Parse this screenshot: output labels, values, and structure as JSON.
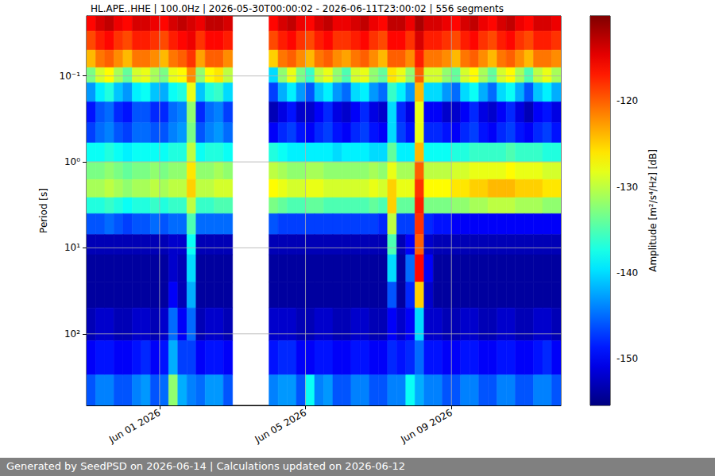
{
  "chart_data": {
    "type": "heatmap",
    "title": "HL.APE..HHE | 100.0Hz | 2026-05-30T00:00:02 - 2026-06-11T23:00:02 | 556 segments",
    "footer": "Generated by SeedPSD on 2026-06-14 | Calculations updated on 2026-06-12",
    "y_label": "Period [s]",
    "log": "y",
    "grid": true,
    "xlim": [
      "2026-05-30T00:00",
      "2026-06-12T00:00"
    ],
    "xticks": [
      {
        "value": "2026-06-01T00:00",
        "label": "Jun 01 2026"
      },
      {
        "value": "2026-06-05T00:00",
        "label": "Jun 05 2026"
      },
      {
        "value": "2026-06-09T00:00",
        "label": "Jun 09 2026"
      }
    ],
    "ylim": [
      0.02,
      680
    ],
    "yticks": [
      {
        "value": 0.1,
        "label": "10⁻¹"
      },
      {
        "value": 1,
        "label": "10⁰"
      },
      {
        "value": 10,
        "label": "10¹"
      },
      {
        "value": 100,
        "label": "10²"
      }
    ],
    "colorbar": {
      "label": "Amplitude [m²/s⁴/Hz] [dB]",
      "range": [
        -155.4,
        -110.1
      ],
      "ticks": [
        -150,
        -140,
        -130,
        -120
      ]
    },
    "time_edges": [
      "2026-05-30T00:00",
      "2026-05-30T06:00",
      "2026-05-30T12:00",
      "2026-05-30T18:00",
      "2026-05-31T00:00",
      "2026-05-31T06:00",
      "2026-05-31T12:00",
      "2026-05-31T18:00",
      "2026-06-01T00:00",
      "2026-06-01T06:00",
      "2026-06-01T12:00",
      "2026-06-01T18:00",
      "2026-06-02T00:00",
      "2026-06-02T06:00",
      "2026-06-02T12:00",
      "2026-06-02T18:00",
      "2026-06-03T00:00",
      "2026-06-03T06:00",
      "2026-06-03T12:00",
      "2026-06-03T18:00",
      "2026-06-04T00:00",
      "2026-06-04T06:00",
      "2026-06-04T12:00",
      "2026-06-04T18:00",
      "2026-06-05T00:00",
      "2026-06-05T06:00",
      "2026-06-05T12:00",
      "2026-06-05T18:00",
      "2026-06-06T00:00",
      "2026-06-06T06:00",
      "2026-06-06T12:00",
      "2026-06-06T18:00",
      "2026-06-07T00:00",
      "2026-06-07T06:00",
      "2026-06-07T12:00",
      "2026-06-07T18:00",
      "2026-06-08T00:00",
      "2026-06-08T06:00",
      "2026-06-08T12:00",
      "2026-06-08T18:00",
      "2026-06-09T00:00",
      "2026-06-09T06:00",
      "2026-06-09T12:00",
      "2026-06-09T18:00",
      "2026-06-10T00:00",
      "2026-06-10T06:00",
      "2026-06-10T12:00",
      "2026-06-10T18:00",
      "2026-06-11T00:00",
      "2026-06-11T06:00",
      "2026-06-11T12:00",
      "2026-06-11T18:00",
      "2026-06-12T00:00"
    ],
    "period_edges": [
      0.02,
      0.03,
      0.05,
      0.08,
      0.12,
      0.2,
      0.35,
      0.6,
      1.0,
      1.6,
      2.6,
      4,
      7,
      12,
      25,
      50,
      120,
      300,
      680
    ],
    "amplitude": [
      [
        -116,
        -114,
        -113,
        -115,
        -116,
        -114,
        -114,
        -115,
        -116,
        -114,
        -113,
        -114,
        -115,
        -113,
        -113,
        -114,
        null,
        null,
        null,
        null,
        -116,
        -114,
        -113,
        -115,
        -116,
        -114,
        -113,
        -115,
        -115,
        -114,
        -113,
        -115,
        -116,
        -113,
        -113,
        -115,
        -112,
        -114,
        -114,
        -115,
        -116,
        -114,
        -113,
        -115,
        -116,
        -114,
        -113,
        -115,
        -116,
        -114,
        -114,
        -115
      ],
      [
        -119,
        -117,
        -116,
        -118,
        -119,
        -117,
        -117,
        -118,
        -119,
        -117,
        -116,
        -115,
        -118,
        -116,
        -116,
        -117,
        null,
        null,
        null,
        null,
        -119,
        -117,
        -116,
        -118,
        -119,
        -117,
        -116,
        -118,
        -118,
        -117,
        -116,
        -118,
        -119,
        -116,
        -116,
        -118,
        -114,
        -117,
        -117,
        -118,
        -119,
        -117,
        -116,
        -118,
        -119,
        -117,
        -116,
        -118,
        -119,
        -117,
        -117,
        -118
      ],
      [
        -124,
        -121,
        -120,
        -122,
        -124,
        -121,
        -121,
        -122,
        -124,
        -121,
        -120,
        -118,
        -123,
        -120,
        -120,
        -122,
        null,
        null,
        null,
        null,
        -125,
        -121,
        -120,
        -122,
        -124,
        -121,
        -120,
        -122,
        -123,
        -121,
        -120,
        -122,
        -124,
        -120,
        -120,
        -122,
        -117,
        -121,
        -121,
        -122,
        -124,
        -121,
        -120,
        -122,
        -124,
        -121,
        -120,
        -122,
        -124,
        -121,
        -121,
        -122
      ],
      [
        -133,
        -129,
        -127,
        -131,
        -134,
        -129,
        -128,
        -131,
        -133,
        -128,
        -127,
        -122,
        -132,
        -127,
        -126,
        -130,
        null,
        null,
        null,
        null,
        -140,
        -132,
        -128,
        -133,
        -136,
        -130,
        -128,
        -132,
        -135,
        -129,
        -128,
        -132,
        -134,
        -126,
        -128,
        -132,
        -120,
        -129,
        -129,
        -132,
        -134,
        -129,
        -127,
        -131,
        -134,
        -129,
        -127,
        -131,
        -135,
        -130,
        -128,
        -131
      ],
      [
        -143,
        -139,
        -137,
        -141,
        -143,
        -139,
        -138,
        -141,
        -142,
        -138,
        -137,
        -128,
        -141,
        -137,
        -136,
        -140,
        null,
        null,
        null,
        null,
        -147,
        -142,
        -139,
        -143,
        -146,
        -141,
        -139,
        -143,
        -145,
        -140,
        -139,
        -143,
        -145,
        -136,
        -139,
        -143,
        -124,
        -140,
        -140,
        -143,
        -145,
        -140,
        -138,
        -142,
        -145,
        -140,
        -138,
        -142,
        -146,
        -141,
        -139,
        -142
      ],
      [
        -149,
        -146,
        -145,
        -148,
        -149,
        -146,
        -146,
        -148,
        -148,
        -145,
        -144,
        -132,
        -148,
        -145,
        -144,
        -147,
        null,
        null,
        null,
        null,
        -153,
        -151,
        -149,
        -152,
        -152,
        -150,
        -148,
        -151,
        -152,
        -150,
        -148,
        -151,
        -152,
        -140,
        -148,
        -151,
        -128,
        -150,
        -150,
        -152,
        -152,
        -150,
        -148,
        -151,
        -152,
        -150,
        -148,
        -151,
        -153,
        -150,
        -149,
        -151
      ],
      [
        -147,
        -145,
        -144,
        -146,
        -147,
        -145,
        -145,
        -146,
        -146,
        -144,
        -143,
        -133,
        -146,
        -144,
        -143,
        -145,
        null,
        null,
        null,
        null,
        -150,
        -148,
        -147,
        -149,
        -150,
        -148,
        -147,
        -149,
        -150,
        -148,
        -147,
        -149,
        -150,
        -140,
        -147,
        -149,
        -128,
        -148,
        -148,
        -149,
        -150,
        -148,
        -147,
        -149,
        -150,
        -148,
        -147,
        -149,
        -150,
        -148,
        -147,
        -149
      ],
      [
        -138,
        -138,
        -137,
        -138,
        -139,
        -138,
        -138,
        -138,
        -138,
        -137,
        -137,
        -130,
        -138,
        -137,
        -137,
        -138,
        null,
        null,
        null,
        null,
        -137,
        -138,
        -139,
        -139,
        -139,
        -139,
        -139,
        -140,
        -139,
        -139,
        -139,
        -140,
        -140,
        -134,
        -139,
        -139,
        -124,
        -138,
        -138,
        -138,
        -137,
        -137,
        -136,
        -136,
        -136,
        -136,
        -135,
        -136,
        -136,
        -136,
        -137,
        -137
      ],
      [
        -133,
        -133,
        -132,
        -133,
        -134,
        -133,
        -133,
        -132,
        -133,
        -132,
        -132,
        -126,
        -132,
        -132,
        -131,
        -132,
        null,
        null,
        null,
        null,
        -130,
        -131,
        -132,
        -132,
        -131,
        -131,
        -132,
        -132,
        -132,
        -132,
        -132,
        -131,
        -132,
        -128,
        -131,
        -131,
        -120,
        -130,
        -130,
        -130,
        -129,
        -129,
        -128,
        -128,
        -128,
        -128,
        -127,
        -128,
        -128,
        -128,
        -129,
        -129
      ],
      [
        -131,
        -131,
        -130,
        -131,
        -132,
        -131,
        -131,
        -130,
        -131,
        -130,
        -130,
        -125,
        -130,
        -130,
        -129,
        -129,
        null,
        null,
        null,
        null,
        -127,
        -128,
        -129,
        -129,
        -128,
        -128,
        -129,
        -129,
        -129,
        -129,
        -129,
        -128,
        -129,
        -125,
        -128,
        -128,
        -118,
        -127,
        -127,
        -127,
        -126,
        -126,
        -125,
        -125,
        -124,
        -124,
        -124,
        -125,
        -125,
        -125,
        -126,
        -126
      ],
      [
        -137,
        -137,
        -136,
        -137,
        -138,
        -137,
        -137,
        -136,
        -137,
        -136,
        -136,
        -130,
        -136,
        -136,
        -135,
        -135,
        null,
        null,
        null,
        null,
        -133,
        -134,
        -135,
        -135,
        -134,
        -134,
        -135,
        -135,
        -135,
        -135,
        -135,
        -134,
        -135,
        -125,
        -134,
        -134,
        -117,
        -133,
        -133,
        -133,
        -132,
        -132,
        -131,
        -131,
        -130,
        -130,
        -130,
        -131,
        -131,
        -131,
        -132,
        -132
      ],
      [
        -146,
        -146,
        -145,
        -146,
        -147,
        -146,
        -146,
        -145,
        -146,
        -145,
        -145,
        -135,
        -145,
        -145,
        -145,
        -145,
        null,
        null,
        null,
        null,
        -146,
        -147,
        -147,
        -147,
        -147,
        -147,
        -147,
        -147,
        -147,
        -147,
        -147,
        -147,
        -148,
        -130,
        -147,
        -147,
        -118,
        -148,
        -149,
        -149,
        -150,
        -150,
        -150,
        -150,
        -150,
        -150,
        -150,
        -150,
        -150,
        -150,
        -150,
        -150
      ],
      [
        -153,
        -153,
        -153,
        -153,
        -153,
        -153,
        -153,
        -153,
        -153,
        -152,
        -152,
        -138,
        -153,
        -153,
        -153,
        -153,
        null,
        null,
        null,
        null,
        -153,
        -153,
        -153,
        -153,
        -153,
        -153,
        -153,
        -153,
        -153,
        -153,
        -153,
        -153,
        -153,
        -135,
        -153,
        -150,
        -120,
        -152,
        -153,
        -153,
        -153,
        -153,
        -153,
        -153,
        -153,
        -153,
        -153,
        -153,
        -153,
        -153,
        -153,
        -153
      ],
      [
        -154,
        -154,
        -154,
        -154,
        -154,
        -154,
        -154,
        -154,
        -154,
        -152,
        -153,
        -140,
        -154,
        -154,
        -154,
        -154,
        null,
        null,
        null,
        null,
        -154,
        -154,
        -154,
        -154,
        -154,
        -154,
        -154,
        -154,
        -154,
        -154,
        -154,
        -154,
        -154,
        -140,
        -154,
        -145,
        -116,
        -150,
        -154,
        -154,
        -154,
        -154,
        -154,
        -154,
        -154,
        -154,
        -154,
        -154,
        -154,
        -154,
        -154,
        -154
      ],
      [
        -154,
        -154,
        -154,
        -154,
        -154,
        -154,
        -154,
        -154,
        -154,
        -150,
        -153,
        -142,
        -154,
        -154,
        -154,
        -154,
        null,
        null,
        null,
        null,
        -154,
        -154,
        -154,
        -154,
        -154,
        -154,
        -154,
        -154,
        -154,
        -154,
        -154,
        -154,
        -154,
        -146,
        -154,
        -148,
        -125,
        -152,
        -154,
        -154,
        -154,
        -154,
        -154,
        -154,
        -154,
        -154,
        -154,
        -154,
        -154,
        -154,
        -154,
        -154
      ],
      [
        -153,
        -152,
        -152,
        -153,
        -153,
        -152,
        -152,
        -153,
        -152,
        -145,
        -150,
        -145,
        -153,
        -152,
        -152,
        -153,
        null,
        null,
        null,
        null,
        -152,
        -152,
        -152,
        -153,
        -153,
        -152,
        -152,
        -153,
        -153,
        -152,
        -152,
        -153,
        -153,
        -150,
        -152,
        -150,
        -140,
        -152,
        -152,
        -153,
        -153,
        -152,
        -152,
        -153,
        -153,
        -152,
        -152,
        -153,
        -153,
        -152,
        -152,
        -153
      ],
      [
        -150,
        -149,
        -149,
        -150,
        -150,
        -149,
        -148,
        -150,
        -149,
        -142,
        -147,
        -147,
        -150,
        -149,
        -149,
        -150,
        null,
        null,
        null,
        null,
        -149,
        -148,
        -148,
        -150,
        -150,
        -149,
        -149,
        -150,
        -150,
        -149,
        -149,
        -150,
        -150,
        -148,
        -149,
        -148,
        -145,
        -149,
        -149,
        -150,
        -150,
        -149,
        -149,
        -150,
        -150,
        -149,
        -149,
        -150,
        -150,
        -149,
        -148,
        -150
      ],
      [
        -146,
        -144,
        -144,
        -146,
        -146,
        -144,
        -143,
        -146,
        -145,
        -132,
        -142,
        -144,
        -145,
        -143,
        -143,
        -146,
        null,
        null,
        null,
        null,
        -144,
        -143,
        -143,
        -146,
        -138,
        -144,
        -143,
        -146,
        -146,
        -144,
        -144,
        -146,
        -146,
        -144,
        -144,
        -138,
        -142,
        -144,
        -144,
        -146,
        -146,
        -144,
        -144,
        -146,
        -146,
        -144,
        -144,
        -146,
        -146,
        -144,
        -144,
        -146
      ]
    ]
  }
}
